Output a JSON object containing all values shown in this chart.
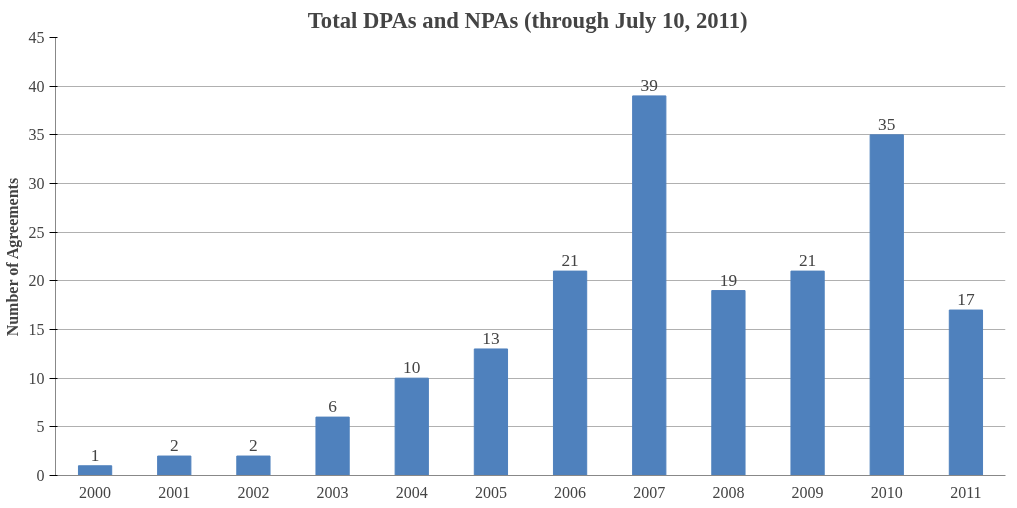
{
  "chart_data": {
    "type": "bar",
    "title": "Total DPAs and NPAs (through  July 10, 2011)",
    "ylabel": "Number of Agreements",
    "categories": [
      "2000",
      "2001",
      "2002",
      "2003",
      "2004",
      "2005",
      "2006",
      "2007",
      "2008",
      "2009",
      "2010",
      "2011"
    ],
    "values": [
      1,
      2,
      2,
      6,
      10,
      13,
      21,
      39,
      19,
      21,
      35,
      17
    ],
    "color": "#4f81bd",
    "ylim": [
      0,
      45
    ],
    "yticks": [
      0,
      5,
      10,
      15,
      20,
      25,
      30,
      35,
      40,
      45
    ],
    "grid": "y",
    "data_labels": true
  }
}
